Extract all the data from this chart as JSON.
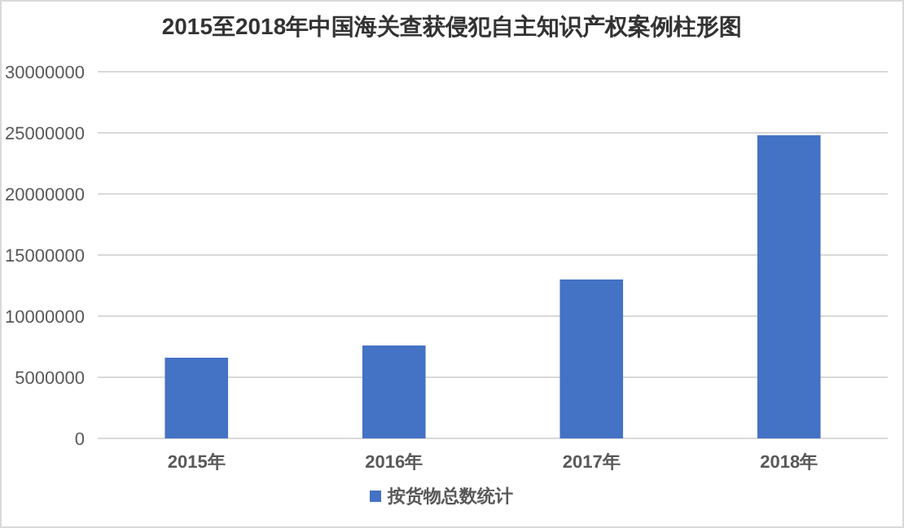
{
  "chart_data": {
    "type": "bar",
    "title": "2015至2018年中国海关查获侵犯自主知识产权案例柱形图",
    "categories": [
      "2015年",
      "2016年",
      "2017年",
      "2018年"
    ],
    "series": [
      {
        "name": "按货物总数统计",
        "color": "#4472c4",
        "values": [
          6600000,
          7600000,
          13000000,
          24800000
        ]
      }
    ],
    "ylim": [
      0,
      30000000
    ],
    "yticks": [
      0,
      5000000,
      10000000,
      15000000,
      20000000,
      25000000,
      30000000
    ],
    "grid": "y",
    "legend": "bottom"
  }
}
